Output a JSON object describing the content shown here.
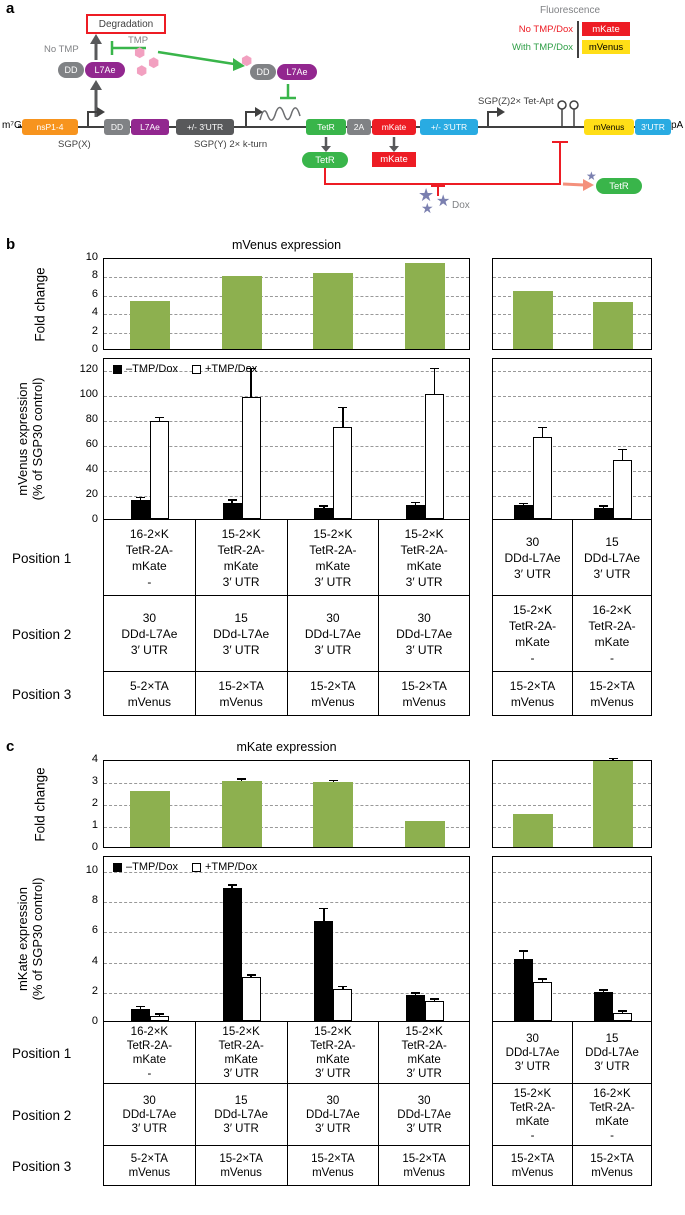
{
  "figure": {
    "panel_a_label": "a",
    "panel_b_label": "b",
    "panel_c_label": "c"
  },
  "icons": {
    "tmp_hexagon": "⬢",
    "dox_star": "★"
  },
  "panel_a": {
    "degradation": "Degradation",
    "no_tmp": "No TMP",
    "with_tmp": "With TMP",
    "fluorescence_title": "Fluorescence",
    "legend_rows": [
      {
        "condition": "No TMP/Dox",
        "condition_color": "#ed1c24",
        "reporter": "mKate",
        "reporter_bg": "#ed1c24",
        "reporter_fg": "#ffffff"
      },
      {
        "condition": "With TMP/Dox",
        "condition_color": "#2e9e46",
        "reporter": "mVenus",
        "reporter_bg": "#ffde17",
        "reporter_fg": "#000000"
      }
    ],
    "cap": "m⁷G",
    "polyA": "pA",
    "sgp_x": "SGP(X)",
    "sgp_y": "SGP(Y) 2× k-turn",
    "sgp_z": "SGP(Z)2× Tet-Apt",
    "pill_dd": "DD",
    "pill_l7ae": "L7Ae",
    "construct_elements": [
      {
        "label": "nsP1-4",
        "bg": "#f7941e",
        "fg": "#ffffff"
      },
      {
        "label": "DD",
        "bg": "#808285",
        "fg": "#ffffff"
      },
      {
        "label": "L7Ae",
        "bg": "#92278f",
        "fg": "#ffffff"
      },
      {
        "label": "+/- 3′UTR",
        "bg": "#58595b",
        "fg": "#ffffff"
      },
      {
        "label": "TetR",
        "bg": "#39b54a",
        "fg": "#ffffff"
      },
      {
        "label": "2A",
        "bg": "#808285",
        "fg": "#ffffff"
      },
      {
        "label": "mKate",
        "bg": "#ed1c24",
        "fg": "#ffffff"
      },
      {
        "label": "+/- 3′UTR",
        "bg": "#29abe2",
        "fg": "#ffffff"
      },
      {
        "label": "mVenus",
        "bg": "#ffde17",
        "fg": "#000000"
      },
      {
        "label": "3′UTR",
        "bg": "#29abe2",
        "fg": "#ffffff"
      }
    ],
    "products": {
      "tetr": "TetR",
      "mkate": "mKate",
      "dox": "Dox",
      "released_tetr": "TetR"
    }
  },
  "chart_data": [
    {
      "id": "fold-b",
      "type": "bar",
      "title": "mVenus expression",
      "ylabel": "Fold change",
      "ylim": [
        0,
        10
      ],
      "yticks": [
        0,
        2,
        4,
        6,
        8,
        10
      ],
      "grid": "dashed",
      "bar_color": "#8db04f",
      "groups": [
        {
          "values": [
            5.2,
            7.9,
            8.3,
            9.3
          ],
          "errors": [
            0,
            0,
            0,
            0
          ]
        },
        {
          "values": [
            6.3,
            5.1
          ],
          "errors": [
            0,
            0
          ]
        }
      ]
    },
    {
      "id": "main-b",
      "type": "bar",
      "ylabel": "mVenus expression\n(% of SGP30 control)",
      "ylim": [
        0,
        130
      ],
      "yticks": [
        0,
        20,
        40,
        60,
        80,
        100,
        120
      ],
      "grid": "dashed",
      "legend": [
        {
          "label": "–TMP/Dox",
          "fill": "#000000"
        },
        {
          "label": "+TMP/Dox",
          "fill": "#ffffff"
        }
      ],
      "groups": [
        {
          "series": [
            {
              "name": "–TMP/Dox",
              "fill": "#000000",
              "values": [
                15,
                13,
                9,
                11
              ],
              "errors": [
                1.5,
                1.5,
                1,
                1.5
              ]
            },
            {
              "name": "+TMP/Dox",
              "fill": "#ffffff",
              "values": [
                79,
                98,
                74,
                100
              ],
              "errors": [
                2,
                22,
                15,
                20
              ]
            }
          ]
        },
        {
          "series": [
            {
              "name": "–TMP/Dox",
              "fill": "#000000",
              "values": [
                11,
                9
              ],
              "errors": [
                1,
                1
              ]
            },
            {
              "name": "+TMP/Dox",
              "fill": "#ffffff",
              "values": [
                66,
                47
              ],
              "errors": [
                7,
                8
              ]
            }
          ]
        }
      ]
    },
    {
      "id": "fold-c",
      "type": "bar",
      "title": "mKate expression",
      "ylabel": "Fold change",
      "ylim": [
        0,
        4
      ],
      "yticks": [
        0,
        1,
        2,
        3,
        4
      ],
      "grid": "dashed",
      "bar_color": "#8db04f",
      "groups": [
        {
          "values": [
            2.55,
            3.0,
            2.95,
            1.2
          ],
          "errors": [
            0,
            0.05,
            0.05,
            0
          ]
        },
        {
          "values": [
            1.5,
            3.9
          ],
          "errors": [
            0,
            0.1
          ]
        }
      ]
    },
    {
      "id": "main-c",
      "type": "bar",
      "ylabel": "mKate expression\n(% of SGP30 control)",
      "ylim": [
        0,
        11
      ],
      "yticks": [
        0,
        2,
        4,
        6,
        8,
        10
      ],
      "grid": "dashed",
      "legend": [
        {
          "label": "–TMP/Dox",
          "fill": "#000000"
        },
        {
          "label": "+TMP/Dox",
          "fill": "#ffffff"
        }
      ],
      "groups": [
        {
          "series": [
            {
              "name": "–TMP/Dox",
              "fill": "#000000",
              "values": [
                0.8,
                8.8,
                6.6,
                1.7
              ],
              "errors": [
                0.1,
                0.15,
                0.8,
                0.1
              ]
            },
            {
              "name": "+TMP/Dox",
              "fill": "#ffffff",
              "values": [
                0.35,
                2.9,
                2.1,
                1.3
              ],
              "errors": [
                0.05,
                0.1,
                0.15,
                0.1
              ]
            }
          ]
        },
        {
          "series": [
            {
              "name": "–TMP/Dox",
              "fill": "#000000",
              "values": [
                4.1,
                1.9
              ],
              "errors": [
                0.5,
                0.1
              ]
            },
            {
              "name": "+TMP/Dox",
              "fill": "#ffffff",
              "values": [
                2.6,
                0.55
              ],
              "errors": [
                0.15,
                0.05
              ]
            }
          ]
        }
      ]
    }
  ],
  "sample_table": {
    "row_labels": [
      "Position 1",
      "Position 2",
      "Position 3"
    ],
    "left_columns": [
      [
        [
          "16-2×K",
          "TetR-2A-",
          "mKate",
          "-"
        ],
        [
          "30",
          "DDd-L7Ae",
          "3′ UTR"
        ],
        [
          "5-2×TA",
          "mVenus"
        ]
      ],
      [
        [
          "15-2×K",
          "TetR-2A-",
          "mKate",
          "3′ UTR"
        ],
        [
          "15",
          "DDd-L7Ae",
          "3′ UTR"
        ],
        [
          "15-2×TA",
          "mVenus"
        ]
      ],
      [
        [
          "15-2×K",
          "TetR-2A-",
          "mKate",
          "3′ UTR"
        ],
        [
          "30",
          "DDd-L7Ae",
          "3′ UTR"
        ],
        [
          "15-2×TA",
          "mVenus"
        ]
      ],
      [
        [
          "15-2×K",
          "TetR-2A-",
          "mKate",
          "3′ UTR"
        ],
        [
          "30",
          "DDd-L7Ae",
          "3′ UTR"
        ],
        [
          "15-2×TA",
          "mVenus"
        ]
      ]
    ],
    "right_columns": [
      [
        [
          "30",
          "DDd-L7Ae",
          "3′ UTR"
        ],
        [
          "15-2×K",
          "TetR-2A-",
          "mKate",
          "-"
        ],
        [
          "15-2×TA",
          "mVenus"
        ]
      ],
      [
        [
          "15",
          "DDd-L7Ae",
          "3′ UTR"
        ],
        [
          "16-2×K",
          "TetR-2A-",
          "mKate",
          "-"
        ],
        [
          "15-2×TA",
          "mVenus"
        ]
      ]
    ]
  }
}
